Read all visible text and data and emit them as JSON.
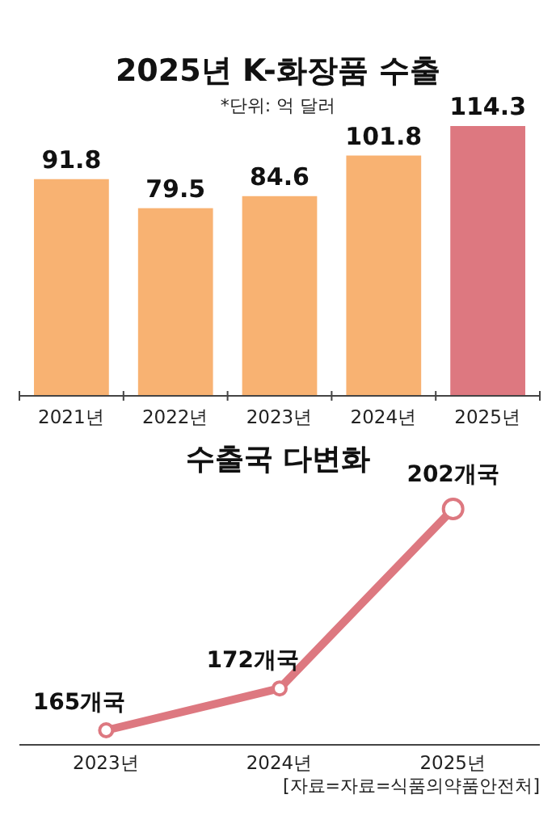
{
  "chart_data": [
    {
      "type": "bar",
      "title": "2025년 K-화장품 수출",
      "subtitle": "*단위: 억 달러",
      "categories": [
        "2021년",
        "2022년",
        "2023년",
        "2024년",
        "2025년"
      ],
      "values": [
        91.8,
        79.5,
        84.6,
        101.8,
        114.3
      ],
      "colors": [
        "#f8b272",
        "#f8b272",
        "#f8b272",
        "#f8b272",
        "#dd7880"
      ],
      "data_labels": true
    },
    {
      "type": "line",
      "title": "수출국 다변화",
      "categories": [
        "2023년",
        "2024년",
        "2025년"
      ],
      "values": [
        165,
        172,
        202
      ],
      "value_labels": [
        "165개국",
        "172개국",
        "202개국"
      ],
      "color": "#dd7880",
      "marker": "circle",
      "line_style": "solid",
      "annotations": [
        "[자료=자료=식품의약품안전처]"
      ]
    }
  ]
}
